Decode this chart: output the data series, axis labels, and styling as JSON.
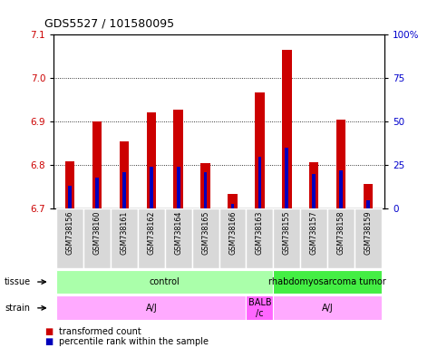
{
  "title": "GDS5527 / 101580095",
  "samples": [
    "GSM738156",
    "GSM738160",
    "GSM738161",
    "GSM738162",
    "GSM738164",
    "GSM738165",
    "GSM738166",
    "GSM738163",
    "GSM738155",
    "GSM738157",
    "GSM738158",
    "GSM738159"
  ],
  "transformed_count": [
    6.81,
    6.9,
    6.855,
    6.922,
    6.927,
    6.805,
    6.734,
    6.967,
    7.065,
    6.807,
    6.905,
    6.757
  ],
  "percentile_rank": [
    13,
    18,
    21,
    24,
    24,
    21,
    3,
    30,
    35,
    20,
    22,
    5
  ],
  "ylim_left": [
    6.7,
    7.1
  ],
  "ylim_right": [
    0,
    100
  ],
  "yticks_left": [
    6.7,
    6.8,
    6.9,
    7.0,
    7.1
  ],
  "yticks_right": [
    0,
    25,
    50,
    75,
    100
  ],
  "left_color": "#cc0000",
  "right_color": "#0000cc",
  "bar_color_red": "#cc0000",
  "bar_color_blue": "#0000bb",
  "tissue_configs": [
    {
      "start": 0,
      "end": 7,
      "label": "control",
      "color": "#aaffaa"
    },
    {
      "start": 8,
      "end": 11,
      "label": "rhabdomyosarcoma tumor",
      "color": "#44ee44"
    }
  ],
  "strain_configs": [
    {
      "start": 0,
      "end": 6,
      "label": "A/J",
      "color": "#ffaaff"
    },
    {
      "start": 7,
      "end": 7,
      "label": "BALB\n/c",
      "color": "#ff66ff"
    },
    {
      "start": 8,
      "end": 11,
      "label": "A/J",
      "color": "#ffaaff"
    }
  ],
  "legend_red_label": "transformed count",
  "legend_blue_label": "percentile rank within the sample",
  "sample_box_color": "#d8d8d8",
  "plot_bg": "#ffffff"
}
